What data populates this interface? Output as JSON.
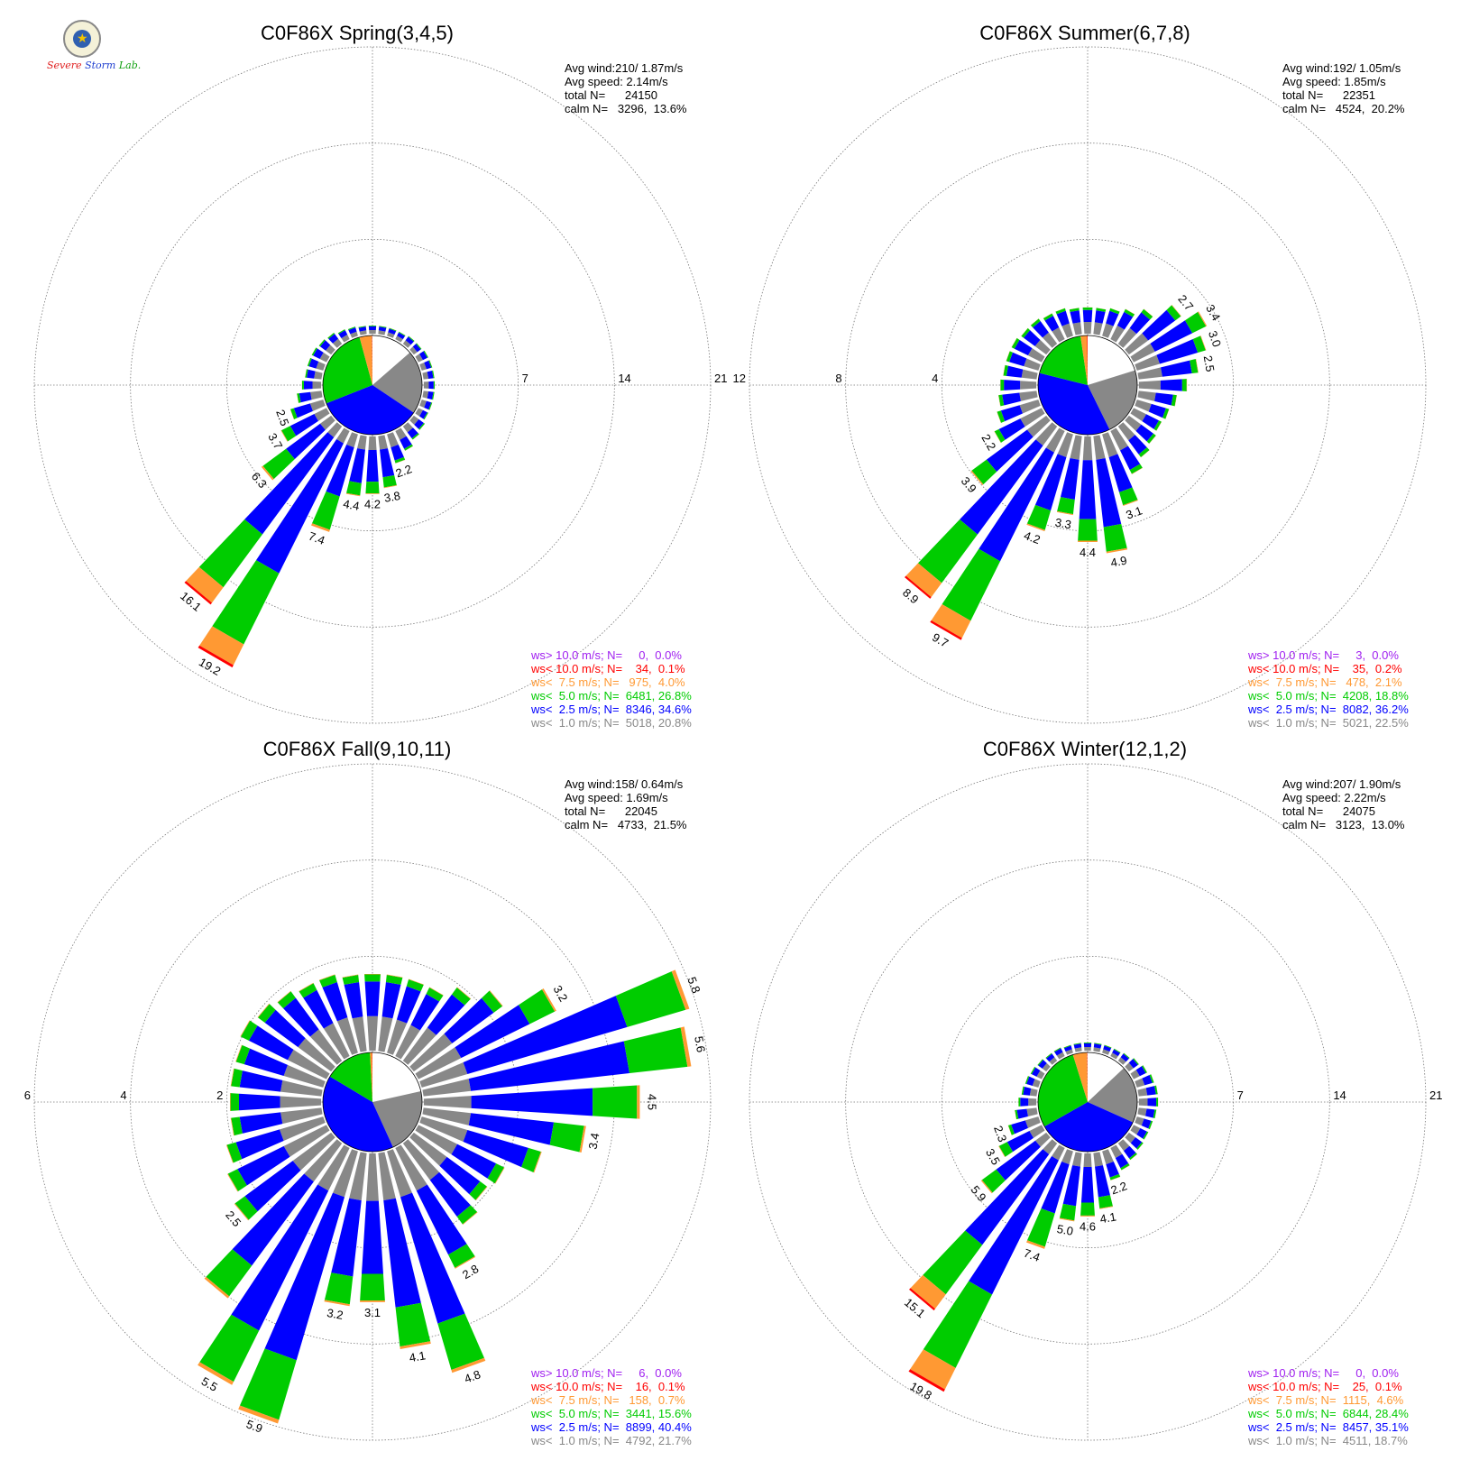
{
  "colors": {
    "gt10": "#a020f0",
    "lt10": "#ff0000",
    "lt7_5": "#ff9933",
    "lt5": "#00cc00",
    "lt2_5": "#0000ff",
    "lt1": "#888888",
    "text": "#000000",
    "grid": "#777777"
  },
  "logo": {
    "name": "severe-storm-lab-logo",
    "text": "Severe Storm Lab."
  },
  "chart_data": [
    {
      "type": "wind-rose",
      "title": "C0F86X Spring(3,4,5)",
      "stats": [
        "Avg wind:210/ 1.87m/s",
        "Avg speed: 2.14m/s",
        "total N=      24150",
        "calm N=   3296,  13.6%"
      ],
      "rings": [
        7,
        14,
        21
      ],
      "ring_labels": [
        "7",
        "14",
        "21"
      ],
      "ring_label_side": "right",
      "max_pct": 21,
      "calm_pct": 13.6,
      "pie": [
        13.6,
        20.8,
        34.6,
        26.8,
        4.0,
        0.1,
        0.0
      ],
      "legend": [
        "ws> 10.0 m/s; N=     0,  0.0%",
        "ws< 10.0 m/s; N=    34,  0.1%",
        "ws<  7.5 m/s; N=   975,  4.0%",
        "ws<  5.0 m/s; N=  6481, 26.8%",
        "ws<  2.5 m/s; N=  8346, 34.6%",
        "ws<  1.0 m/s; N=  5018, 20.8%"
      ],
      "sectors_deg": [
        0,
        10,
        20,
        30,
        40,
        50,
        60,
        70,
        80,
        90,
        100,
        110,
        120,
        130,
        140,
        150,
        160,
        170,
        180,
        190,
        200,
        210,
        220,
        230,
        240,
        250,
        260,
        270,
        280,
        290,
        300,
        310,
        320,
        330,
        340,
        350
      ],
      "totals": [
        0.6,
        0.6,
        0.6,
        0.6,
        0.7,
        0.7,
        0.8,
        0.8,
        0.8,
        0.8,
        0.8,
        0.8,
        0.8,
        1.0,
        1.2,
        1.6,
        2.2,
        3.8,
        4.2,
        4.4,
        7.4,
        19.2,
        16.1,
        6.3,
        3.7,
        2.5,
        1.8,
        1.4,
        1.2,
        1.2,
        1.2,
        1.1,
        1.0,
        0.8,
        0.7,
        0.6
      ],
      "sector_labels": [
        "",
        "",
        "",
        "",
        "",
        "",
        "",
        "",
        "",
        "",
        "",
        "",
        "",
        "",
        "",
        "",
        "2.2",
        "3.8",
        "4.2",
        "4.4",
        "7.4",
        "19.2",
        "16.1",
        "6.3",
        "3.7",
        "2.5",
        "",
        "",
        "",
        "",
        "",
        "",
        "",
        "",
        "",
        ""
      ]
    },
    {
      "type": "wind-rose",
      "title": "C0F86X Summer(6,7,8)",
      "stats": [
        "Avg wind:192/ 1.05m/s",
        "Avg speed: 1.85m/s",
        "total N=      22351",
        "calm N=   4524,  20.2%"
      ],
      "rings": [
        4,
        8,
        12
      ],
      "ring_labels": [
        "4",
        "8",
        "12"
      ],
      "ring_label_side": "left",
      "max_pct": 12,
      "calm_pct": 20.2,
      "pie": [
        20.2,
        22.5,
        36.2,
        18.8,
        2.1,
        0.2,
        0.0
      ],
      "legend": [
        "ws> 10.0 m/s; N=     3,  0.0%",
        "ws< 10.0 m/s; N=    35,  0.2%",
        "ws<  7.5 m/s; N=   478,  2.1%",
        "ws<  5.0 m/s; N=  4208, 18.8%",
        "ws<  2.5 m/s; N=  8082, 36.2%",
        "ws<  1.0 m/s; N=  5021, 22.5%"
      ],
      "sectors_deg": [
        0,
        10,
        20,
        30,
        40,
        50,
        60,
        70,
        80,
        90,
        100,
        110,
        120,
        130,
        140,
        150,
        160,
        170,
        180,
        190,
        200,
        210,
        220,
        230,
        240,
        250,
        260,
        270,
        280,
        290,
        300,
        310,
        320,
        330,
        340,
        350
      ],
      "totals": [
        1.1,
        1.1,
        1.2,
        1.4,
        1.8,
        2.7,
        3.4,
        3.0,
        2.5,
        2.0,
        1.6,
        1.4,
        1.3,
        1.4,
        1.6,
        2.0,
        3.1,
        4.9,
        4.4,
        3.3,
        4.2,
        9.7,
        8.9,
        3.9,
        2.2,
        1.8,
        1.6,
        1.5,
        1.4,
        1.4,
        1.4,
        1.3,
        1.3,
        1.2,
        1.2,
        1.1
      ],
      "sector_labels": [
        "",
        "",
        "",
        "",
        "",
        "2.7",
        "3.4",
        "3.0",
        "2.5",
        "",
        "",
        "",
        "",
        "",
        "",
        "",
        "3.1",
        "4.9",
        "4.4",
        "3.3",
        "4.2",
        "9.7",
        "8.9",
        "3.9",
        "2.2",
        "",
        "",
        "",
        "",
        "",
        "",
        "",
        "",
        "",
        "",
        ""
      ]
    },
    {
      "type": "wind-rose",
      "title": "C0F86X Fall(9,10,11)",
      "stats": [
        "Avg wind:158/ 0.64m/s",
        "Avg speed: 1.69m/s",
        "total N=      22045",
        "calm N=   4733,  21.5%"
      ],
      "rings": [
        2,
        4,
        6
      ],
      "ring_labels": [
        "2",
        "4",
        "6"
      ],
      "ring_label_side": "left",
      "max_pct": 6,
      "calm_pct": 21.5,
      "pie": [
        21.5,
        21.7,
        40.4,
        15.6,
        0.7,
        0.1,
        0.0
      ],
      "legend": [
        "ws> 10.0 m/s; N=     6,  0.0%",
        "ws< 10.0 m/s; N=    16,  0.1%",
        "ws<  7.5 m/s; N=   158,  0.7%",
        "ws<  5.0 m/s; N=  3441, 15.6%",
        "ws<  2.5 m/s; N=  8899, 40.4%",
        "ws<  1.0 m/s; N=  4792, 21.7%"
      ],
      "sectors_deg": [
        0,
        10,
        20,
        30,
        40,
        50,
        60,
        70,
        80,
        90,
        100,
        110,
        120,
        130,
        140,
        150,
        160,
        170,
        180,
        190,
        200,
        210,
        220,
        230,
        240,
        250,
        260,
        270,
        280,
        290,
        300,
        310,
        320,
        330,
        340,
        350
      ],
      "totals": [
        1.6,
        1.6,
        1.6,
        1.6,
        1.9,
        2.3,
        3.2,
        5.8,
        5.6,
        4.5,
        3.4,
        2.6,
        2.0,
        1.9,
        2.1,
        2.8,
        4.8,
        4.1,
        3.1,
        3.2,
        5.9,
        5.5,
        4.0,
        2.5,
        2.3,
        2.1,
        1.9,
        1.9,
        1.9,
        1.9,
        2.0,
        1.9,
        1.8,
        1.7,
        1.7,
        1.6
      ],
      "sector_labels": [
        "",
        "",
        "",
        "",
        "",
        "",
        "3.2",
        "5.8",
        "5.6",
        "4.5",
        "3.4",
        "",
        "",
        "",
        "",
        "2.8",
        "4.8",
        "4.1",
        "3.1",
        "3.2",
        "5.9",
        "5.5",
        "",
        "2.5",
        "",
        "",
        "",
        "",
        "",
        "",
        "",
        "",
        "",
        "",
        "",
        ""
      ]
    },
    {
      "type": "wind-rose",
      "title": "C0F86X Winter(12,1,2)",
      "stats": [
        "Avg wind:207/ 1.90m/s",
        "Avg speed: 2.22m/s",
        "total N=      24075",
        "calm N=   3123,  13.0%"
      ],
      "rings": [
        7,
        14,
        21
      ],
      "ring_labels": [
        "7",
        "14",
        "21"
      ],
      "ring_label_side": "right",
      "max_pct": 21,
      "calm_pct": 13.0,
      "pie": [
        13.0,
        18.7,
        35.1,
        28.4,
        4.6,
        0.1,
        0.0
      ],
      "legend": [
        "ws> 10.0 m/s; N=     0,  0.0%",
        "ws< 10.0 m/s; N=    25,  0.1%",
        "ws<  7.5 m/s; N=  1115,  4.6%",
        "ws<  5.0 m/s; N=  6844, 28.4%",
        "ws<  2.5 m/s; N=  8457, 35.1%",
        "ws<  1.0 m/s; N=  4511, 18.7%"
      ],
      "sectors_deg": [
        0,
        10,
        20,
        30,
        40,
        50,
        60,
        70,
        80,
        90,
        100,
        110,
        120,
        130,
        140,
        150,
        160,
        170,
        180,
        190,
        200,
        210,
        220,
        230,
        240,
        250,
        260,
        270,
        280,
        290,
        300,
        310,
        320,
        330,
        340,
        350
      ],
      "totals": [
        0.6,
        0.6,
        0.6,
        0.6,
        0.7,
        0.9,
        1.1,
        1.3,
        1.4,
        1.4,
        1.3,
        1.2,
        1.2,
        1.3,
        1.5,
        1.8,
        2.2,
        4.1,
        4.6,
        5.0,
        7.4,
        19.8,
        15.1,
        5.9,
        3.5,
        2.3,
        1.6,
        1.3,
        1.1,
        1.0,
        0.9,
        0.8,
        0.7,
        0.7,
        0.6,
        0.6
      ],
      "sector_labels": [
        "",
        "",
        "",
        "",
        "",
        "",
        "",
        "",
        "",
        "",
        "",
        "",
        "",
        "",
        "",
        "",
        "2.2",
        "4.1",
        "4.6",
        "5.0",
        "7.4",
        "19.8",
        "15.1",
        "5.9",
        "3.5",
        "2.3",
        "",
        "",
        "",
        "",
        "",
        "",
        "",
        "",
        "",
        ""
      ]
    }
  ]
}
